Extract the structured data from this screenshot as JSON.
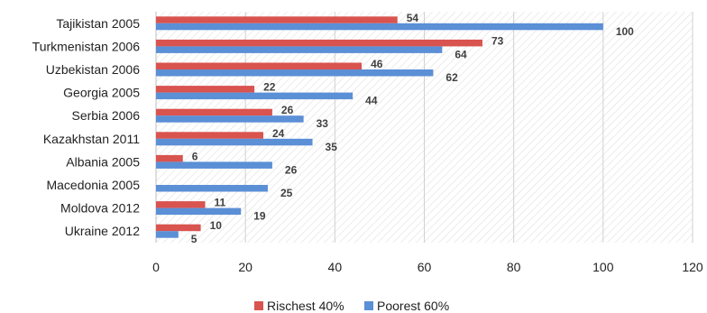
{
  "chart_data": {
    "type": "bar",
    "orientation": "horizontal",
    "categories": [
      "Tajikistan 2005",
      "Turkmenistan 2006",
      "Uzbekistan 2006",
      "Georgia 2005",
      "Serbia 2006",
      "Kazakhstan 2011",
      "Albania 2005",
      "Macedonia 2005",
      "Moldova 2012",
      "Ukraine 2012"
    ],
    "series": [
      {
        "name": "Rischest 40%",
        "color": "#d9534f",
        "values": [
          54,
          73,
          46,
          22,
          26,
          24,
          6,
          0,
          11,
          10
        ],
        "labels": [
          "54",
          "73",
          "46",
          "22",
          "26",
          "24",
          "6",
          "",
          "11",
          "10"
        ]
      },
      {
        "name": "Poorest 60%",
        "color": "#5b8fd6",
        "values": [
          100,
          64,
          62,
          44,
          33,
          35,
          26,
          25,
          19,
          5
        ],
        "labels": [
          "100",
          "64",
          "62",
          "44",
          "33",
          "35",
          "26",
          "25",
          "19",
          "5"
        ]
      }
    ],
    "xlim": [
      0,
      120
    ],
    "xticks": [
      "0",
      "20",
      "40",
      "60",
      "80",
      "100",
      "120"
    ],
    "plot_background": "hatched",
    "legend_position": "bottom"
  }
}
